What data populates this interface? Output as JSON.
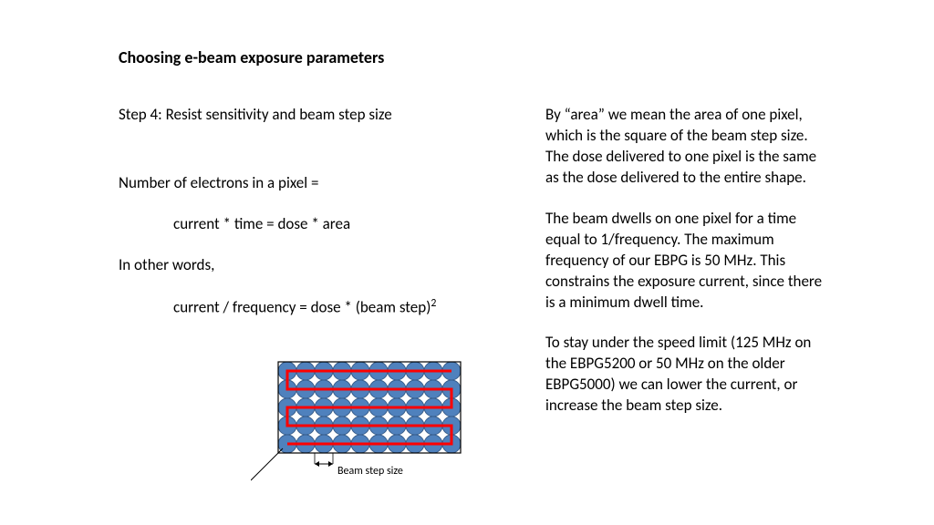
{
  "title": "Choosing e-beam exposure parameters",
  "left": {
    "step": "Step 4: Resist sensitivity and beam step size",
    "line1": "Number of electrons in a pixel =",
    "eq1": "current * time = dose * area",
    "line2": "In other words,",
    "eq2_prefix": "current / frequency = dose * (beam step)",
    "eq2_exp": "2"
  },
  "right": {
    "p1": "By “area” we mean the area of one pixel, which is the square of the beam step size. The dose delivered to one pixel is the same as the dose delivered to the entire shape.",
    "p2": "The beam dwells on one pixel for a time equal to 1/frequency. The maximum frequency of our EBPG is 50 MHz. This constrains the exposure current, since there is a minimum dwell time.",
    "p3": "To stay under the speed limit (125 MHz on the EBPG5200 or 50 MHz on the older EBPG5000) we can lower the current, or increase the beam step size."
  },
  "diagram": {
    "caption": "Beam step size",
    "cols": 10,
    "rows": 5,
    "cell": 20,
    "circle_fill": "#4f81bd",
    "circle_stroke": "#385d8a",
    "circle_stroke_width": 1,
    "box_stroke": "#000000",
    "box_stroke_width": 1.2,
    "path_stroke": "#ff0000",
    "path_stroke_width": 3,
    "pointer_stroke": "#000000",
    "arrow_stroke": "#000000"
  }
}
